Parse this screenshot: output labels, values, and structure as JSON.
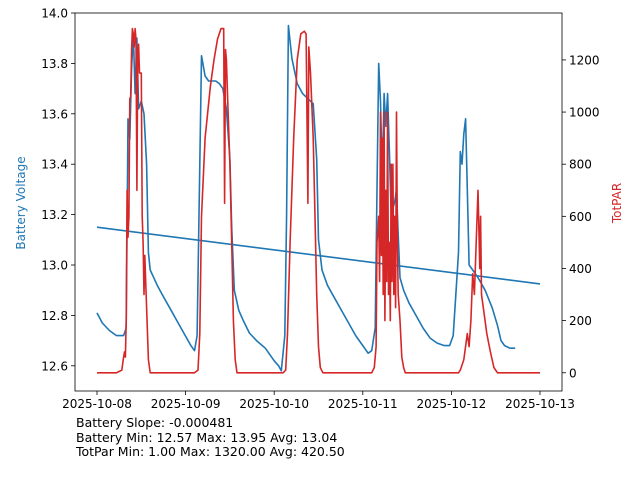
{
  "chart_data": {
    "type": "line",
    "x_ticks": [
      "2025-10-08",
      "2025-10-09",
      "2025-10-10",
      "2025-10-11",
      "2025-10-12",
      "2025-10-13"
    ],
    "x_range_days": [
      0,
      5
    ],
    "left_axis": {
      "label": "Battery Voltage",
      "color": "#1f77b4",
      "ylim": [
        12.5,
        14.0
      ],
      "ticks": [
        "12.6",
        "12.8",
        "13.0",
        "13.2",
        "13.4",
        "13.6",
        "13.8",
        "14.0"
      ]
    },
    "right_axis": {
      "label": "TotPAR",
      "color": "#d62728",
      "ylim": [
        -70,
        1380
      ],
      "ticks": [
        "0",
        "200",
        "400",
        "600",
        "800",
        "1000",
        "1200"
      ]
    },
    "series": [
      {
        "name": "Battery Voltage",
        "axis": "left",
        "color": "#1f77b4",
        "points": [
          [
            0.0,
            12.81
          ],
          [
            0.06,
            12.77
          ],
          [
            0.14,
            12.74
          ],
          [
            0.22,
            12.72
          ],
          [
            0.3,
            12.72
          ],
          [
            0.33,
            12.75
          ],
          [
            0.35,
            13.58
          ],
          [
            0.37,
            13.5
          ],
          [
            0.39,
            13.78
          ],
          [
            0.41,
            13.92
          ],
          [
            0.43,
            13.68
          ],
          [
            0.45,
            13.9
          ],
          [
            0.47,
            13.62
          ],
          [
            0.5,
            13.65
          ],
          [
            0.53,
            13.6
          ],
          [
            0.56,
            13.4
          ],
          [
            0.58,
            13.05
          ],
          [
            0.6,
            12.98
          ],
          [
            0.64,
            12.95
          ],
          [
            0.68,
            12.92
          ],
          [
            0.74,
            12.88
          ],
          [
            0.82,
            12.83
          ],
          [
            0.9,
            12.78
          ],
          [
            0.98,
            12.73
          ],
          [
            1.06,
            12.68
          ],
          [
            1.1,
            12.66
          ],
          [
            1.13,
            12.72
          ],
          [
            1.16,
            13.4
          ],
          [
            1.18,
            13.83
          ],
          [
            1.22,
            13.75
          ],
          [
            1.26,
            13.73
          ],
          [
            1.34,
            13.73
          ],
          [
            1.38,
            13.72
          ],
          [
            1.42,
            13.7
          ],
          [
            1.46,
            13.62
          ],
          [
            1.5,
            13.42
          ],
          [
            1.52,
            13.15
          ],
          [
            1.55,
            12.9
          ],
          [
            1.6,
            12.82
          ],
          [
            1.65,
            12.78
          ],
          [
            1.72,
            12.73
          ],
          [
            1.8,
            12.7
          ],
          [
            1.9,
            12.67
          ],
          [
            2.0,
            12.62
          ],
          [
            2.05,
            12.6
          ],
          [
            2.08,
            12.58
          ],
          [
            2.12,
            12.72
          ],
          [
            2.14,
            13.2
          ],
          [
            2.16,
            13.95
          ],
          [
            2.2,
            13.82
          ],
          [
            2.26,
            13.72
          ],
          [
            2.32,
            13.68
          ],
          [
            2.38,
            13.66
          ],
          [
            2.44,
            13.64
          ],
          [
            2.48,
            13.42
          ],
          [
            2.5,
            13.1
          ],
          [
            2.54,
            12.98
          ],
          [
            2.6,
            12.92
          ],
          [
            2.68,
            12.87
          ],
          [
            2.76,
            12.82
          ],
          [
            2.84,
            12.77
          ],
          [
            2.92,
            12.72
          ],
          [
            3.0,
            12.68
          ],
          [
            3.06,
            12.65
          ],
          [
            3.1,
            12.66
          ],
          [
            3.14,
            12.75
          ],
          [
            3.16,
            13.3
          ],
          [
            3.18,
            13.8
          ],
          [
            3.2,
            13.65
          ],
          [
            3.22,
            13.35
          ],
          [
            3.24,
            13.68
          ],
          [
            3.26,
            13.55
          ],
          [
            3.28,
            13.68
          ],
          [
            3.3,
            13.45
          ],
          [
            3.32,
            13.2
          ],
          [
            3.36,
            13.25
          ],
          [
            3.38,
            13.3
          ],
          [
            3.4,
            13.12
          ],
          [
            3.42,
            12.95
          ],
          [
            3.46,
            12.9
          ],
          [
            3.52,
            12.85
          ],
          [
            3.6,
            12.8
          ],
          [
            3.68,
            12.75
          ],
          [
            3.76,
            12.71
          ],
          [
            3.84,
            12.69
          ],
          [
            3.92,
            12.68
          ],
          [
            3.98,
            12.68
          ],
          [
            4.02,
            12.72
          ],
          [
            4.05,
            12.88
          ],
          [
            4.08,
            13.05
          ],
          [
            4.1,
            13.45
          ],
          [
            4.12,
            13.4
          ],
          [
            4.14,
            13.52
          ],
          [
            4.16,
            13.58
          ],
          [
            4.18,
            13.3
          ],
          [
            4.2,
            13.0
          ],
          [
            4.24,
            12.98
          ],
          [
            4.3,
            12.95
          ],
          [
            4.38,
            12.9
          ],
          [
            4.46,
            12.83
          ],
          [
            4.52,
            12.76
          ],
          [
            4.56,
            12.7
          ],
          [
            4.6,
            12.68
          ],
          [
            4.66,
            12.67
          ],
          [
            4.72,
            12.67
          ]
        ]
      },
      {
        "name": "Battery Trend",
        "axis": "left",
        "color": "#1f77b4",
        "points": [
          [
            0.0,
            13.15
          ],
          [
            5.0,
            12.925
          ]
        ]
      },
      {
        "name": "TotPAR",
        "axis": "right",
        "color": "#d62728",
        "points": [
          [
            0.0,
            0
          ],
          [
            0.12,
            0
          ],
          [
            0.22,
            0
          ],
          [
            0.28,
            10
          ],
          [
            0.3,
            60
          ],
          [
            0.31,
            80
          ],
          [
            0.32,
            60
          ],
          [
            0.33,
            200
          ],
          [
            0.34,
            700
          ],
          [
            0.35,
            520
          ],
          [
            0.36,
            600
          ],
          [
            0.37,
            1050
          ],
          [
            0.38,
            1060
          ],
          [
            0.39,
            1240
          ],
          [
            0.4,
            1320
          ],
          [
            0.41,
            1300
          ],
          [
            0.42,
            1250
          ],
          [
            0.43,
            1320
          ],
          [
            0.44,
            1280
          ],
          [
            0.45,
            700
          ],
          [
            0.46,
            1240
          ],
          [
            0.47,
            1260
          ],
          [
            0.48,
            1150
          ],
          [
            0.5,
            1150
          ],
          [
            0.51,
            600
          ],
          [
            0.52,
            500
          ],
          [
            0.53,
            300
          ],
          [
            0.54,
            450
          ],
          [
            0.55,
            350
          ],
          [
            0.56,
            250
          ],
          [
            0.58,
            50
          ],
          [
            0.6,
            0
          ],
          [
            0.8,
            0
          ],
          [
            1.0,
            0
          ],
          [
            1.1,
            0
          ],
          [
            1.14,
            10
          ],
          [
            1.16,
            150
          ],
          [
            1.18,
            600
          ],
          [
            1.22,
            900
          ],
          [
            1.28,
            1100
          ],
          [
            1.32,
            1200
          ],
          [
            1.36,
            1280
          ],
          [
            1.4,
            1320
          ],
          [
            1.43,
            1320
          ],
          [
            1.44,
            650
          ],
          [
            1.45,
            1240
          ],
          [
            1.46,
            1200
          ],
          [
            1.48,
            1000
          ],
          [
            1.5,
            800
          ],
          [
            1.52,
            500
          ],
          [
            1.54,
            200
          ],
          [
            1.56,
            50
          ],
          [
            1.58,
            0
          ],
          [
            1.8,
            0
          ],
          [
            2.0,
            0
          ],
          [
            2.1,
            0
          ],
          [
            2.13,
            10
          ],
          [
            2.15,
            150
          ],
          [
            2.18,
            500
          ],
          [
            2.22,
            900
          ],
          [
            2.26,
            1200
          ],
          [
            2.3,
            1300
          ],
          [
            2.34,
            1310
          ],
          [
            2.36,
            1300
          ],
          [
            2.38,
            650
          ],
          [
            2.39,
            1250
          ],
          [
            2.41,
            1150
          ],
          [
            2.44,
            900
          ],
          [
            2.46,
            600
          ],
          [
            2.48,
            300
          ],
          [
            2.5,
            100
          ],
          [
            2.52,
            20
          ],
          [
            2.55,
            0
          ],
          [
            2.8,
            0
          ],
          [
            3.0,
            0
          ],
          [
            3.1,
            0
          ],
          [
            3.13,
            20
          ],
          [
            3.15,
            100
          ],
          [
            3.16,
            500
          ],
          [
            3.18,
            600
          ],
          [
            3.19,
            350
          ],
          [
            3.2,
            1000
          ],
          [
            3.21,
            450
          ],
          [
            3.22,
            900
          ],
          [
            3.23,
            300
          ],
          [
            3.24,
            1000
          ],
          [
            3.25,
            200
          ],
          [
            3.26,
            700
          ],
          [
            3.27,
            350
          ],
          [
            3.28,
            1000
          ],
          [
            3.29,
            300
          ],
          [
            3.3,
            500
          ],
          [
            3.31,
            200
          ],
          [
            3.32,
            800
          ],
          [
            3.33,
            350
          ],
          [
            3.34,
            800
          ],
          [
            3.35,
            300
          ],
          [
            3.36,
            600
          ],
          [
            3.37,
            250
          ],
          [
            3.38,
            1000
          ],
          [
            3.39,
            500
          ],
          [
            3.4,
            300
          ],
          [
            3.42,
            200
          ],
          [
            3.44,
            60
          ],
          [
            3.46,
            20
          ],
          [
            3.48,
            0
          ],
          [
            3.8,
            0
          ],
          [
            4.0,
            0
          ],
          [
            4.08,
            0
          ],
          [
            4.1,
            10
          ],
          [
            4.14,
            50
          ],
          [
            4.18,
            150
          ],
          [
            4.2,
            100
          ],
          [
            4.22,
            200
          ],
          [
            4.24,
            380
          ],
          [
            4.26,
            300
          ],
          [
            4.28,
            500
          ],
          [
            4.3,
            700
          ],
          [
            4.32,
            400
          ],
          [
            4.33,
            600
          ],
          [
            4.34,
            300
          ],
          [
            4.36,
            250
          ],
          [
            4.4,
            150
          ],
          [
            4.44,
            80
          ],
          [
            4.48,
            20
          ],
          [
            4.52,
            0
          ],
          [
            4.7,
            0
          ],
          [
            5.0,
            0
          ]
        ]
      }
    ]
  },
  "stats": {
    "line1": "Battery Slope: -0.000481",
    "line2": "Battery Min: 12.57 Max: 13.95 Avg: 13.04",
    "line3": "TotPar Min: 1.00 Max: 1320.00 Avg: 420.50"
  }
}
